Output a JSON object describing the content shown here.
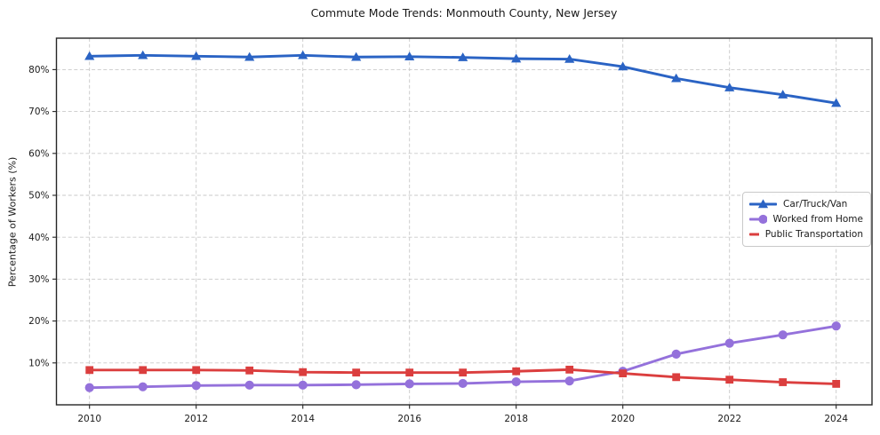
{
  "chart_data": {
    "type": "line",
    "title": "Commute Mode Trends: Monmouth County, New Jersey",
    "xlabel": "",
    "ylabel": "Percentage of Workers (%)",
    "x": [
      2010,
      2011,
      2012,
      2013,
      2014,
      2015,
      2016,
      2017,
      2018,
      2019,
      2020,
      2021,
      2022,
      2023,
      2024
    ],
    "series": [
      {
        "name": "Car/Truck/Van",
        "marker": "triangle",
        "color": "#2A63C4",
        "values": [
          83.2,
          83.4,
          83.2,
          83.0,
          83.4,
          83.0,
          83.1,
          82.9,
          82.6,
          82.5,
          80.7,
          77.9,
          75.7,
          74.0,
          72.0
        ]
      },
      {
        "name": "Worked from Home",
        "marker": "circle",
        "color": "#9471DB",
        "values": [
          4.1,
          4.3,
          4.6,
          4.7,
          4.7,
          4.8,
          5.0,
          5.1,
          5.5,
          5.7,
          8.0,
          12.1,
          14.7,
          16.7,
          18.8
        ]
      },
      {
        "name": "Public Transportation",
        "marker": "square",
        "color": "#DB3E3E",
        "values": [
          8.3,
          8.3,
          8.3,
          8.2,
          7.8,
          7.7,
          7.7,
          7.7,
          8.0,
          8.4,
          7.5,
          6.6,
          6.0,
          5.4,
          5.0
        ]
      }
    ],
    "ylim": [
      0,
      87.5
    ],
    "yticks": [
      10,
      20,
      30,
      40,
      50,
      60,
      70,
      80
    ],
    "ytick_suffix": "%",
    "xticks": [
      2010,
      2012,
      2014,
      2016,
      2018,
      2020,
      2022,
      2024
    ],
    "grid": true,
    "grid_style": "dashed",
    "legend_position": "center-right",
    "colors": {
      "grid": "#c9c9c9",
      "spine": "#262626",
      "text": "#1a1a1a",
      "background": "#ffffff"
    }
  }
}
